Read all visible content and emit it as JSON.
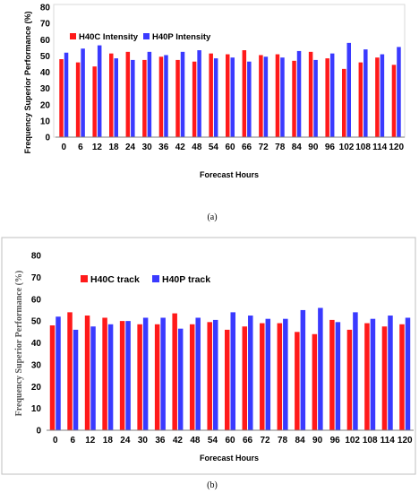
{
  "chart_data": [
    {
      "type": "bar",
      "caption": "(a)",
      "xlabel": "Forecast Hours",
      "ylabel": "Frequency Superior Performance (%)",
      "ylim": [
        0,
        80
      ],
      "yticks": [
        0,
        10,
        20,
        30,
        40,
        50,
        60,
        70,
        80
      ],
      "grid": false,
      "legend_placement": "top-left",
      "categories": [
        "0",
        "6",
        "12",
        "18",
        "24",
        "30",
        "36",
        "42",
        "48",
        "54",
        "60",
        "66",
        "72",
        "78",
        "84",
        "90",
        "96",
        "102",
        "108",
        "114",
        "120"
      ],
      "series": [
        {
          "name": "H40C Intensity",
          "color": "#ff1a1a",
          "values": [
            48,
            46,
            43.5,
            51.5,
            52.5,
            47.5,
            49.5,
            47.5,
            46.5,
            51.5,
            51,
            53.5,
            50.5,
            51,
            47,
            52.5,
            48.5,
            42,
            46,
            49,
            44.5
          ]
        },
        {
          "name": "H40P Intensity",
          "color": "#3a3aff",
          "values": [
            52,
            54.5,
            56.5,
            48.5,
            47.5,
            52.5,
            50.5,
            52.5,
            53.5,
            48.5,
            49,
            46.5,
            49.5,
            49,
            53,
            47.5,
            51.5,
            58,
            54,
            51,
            55.5
          ]
        }
      ]
    },
    {
      "type": "bar",
      "caption": "(b)",
      "xlabel": "Forecast Hours",
      "ylabel": "Frequency Superior Performance (%)",
      "ylim": [
        0,
        80
      ],
      "yticks": [
        0,
        10,
        20,
        30,
        40,
        50,
        60,
        70,
        80
      ],
      "grid": false,
      "legend_placement": "top-left",
      "categories": [
        "0",
        "6",
        "12",
        "18",
        "24",
        "30",
        "36",
        "42",
        "48",
        "54",
        "60",
        "66",
        "72",
        "78",
        "84",
        "90",
        "96",
        "102",
        "108",
        "114",
        "120"
      ],
      "series": [
        {
          "name": "H40C track",
          "color": "#ff1a1a",
          "values": [
            48,
            54,
            52.5,
            51.5,
            50,
            48.5,
            48.5,
            53.5,
            48.5,
            49.5,
            46,
            47.5,
            49,
            49,
            45,
            44,
            50.5,
            46,
            49,
            47.5,
            48.5
          ]
        },
        {
          "name": "H40P track",
          "color": "#3a3aff",
          "values": [
            52,
            46,
            47.5,
            48.5,
            50,
            51.5,
            51.5,
            46.5,
            51.5,
            50.5,
            54,
            52.5,
            51,
            51,
            55,
            56,
            49.5,
            54,
            51,
            52.5,
            51.5
          ]
        }
      ]
    }
  ]
}
